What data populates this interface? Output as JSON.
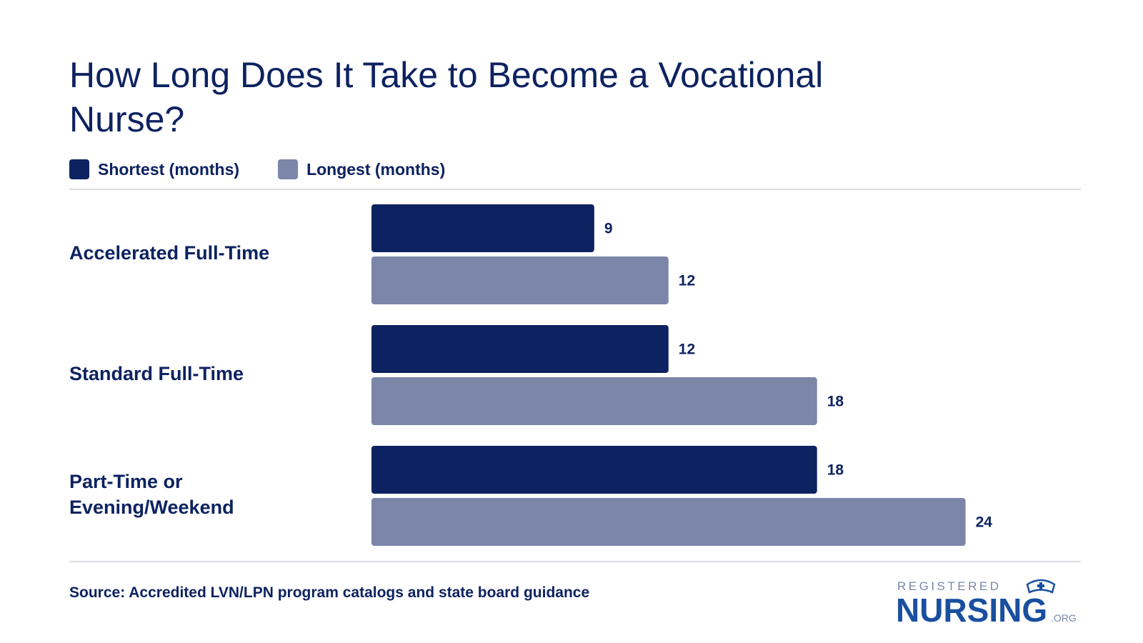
{
  "title": "How Long Does It Take to Become a Vocational Nurse?",
  "legend": {
    "shortest_label": "Shortest (months)",
    "longest_label": "Longest (months)"
  },
  "colors": {
    "shortest": "#0d2260",
    "longest": "#7b86a8",
    "text": "#0d2260",
    "rule": "#d9dbe1"
  },
  "source": "Source: Accredited LVN/LPN program catalogs and state board guidance",
  "logo": {
    "top_text": "REGISTERED",
    "main_text": "NURSING",
    "suffix_text": ".ORG",
    "icon": "nurse-cap-icon"
  },
  "chart_data": {
    "type": "bar",
    "orientation": "horizontal",
    "title": "How Long Does It Take to Become a Vocational Nurse?",
    "categories": [
      "Accelerated Full-Time",
      "Standard Full-Time",
      "Part-Time or Evening/Weekend"
    ],
    "category_lines": [
      [
        "Accelerated Full-Time"
      ],
      [
        "Standard Full-Time"
      ],
      [
        "Part-Time or",
        "Evening/Weekend"
      ]
    ],
    "series": [
      {
        "name": "Shortest (months)",
        "values": [
          9,
          12,
          18
        ]
      },
      {
        "name": "Longest (months)",
        "values": [
          12,
          18,
          24
        ]
      }
    ],
    "xlim": [
      0,
      24
    ],
    "grid": false,
    "legend_position": "top-left",
    "data_labels": true
  }
}
